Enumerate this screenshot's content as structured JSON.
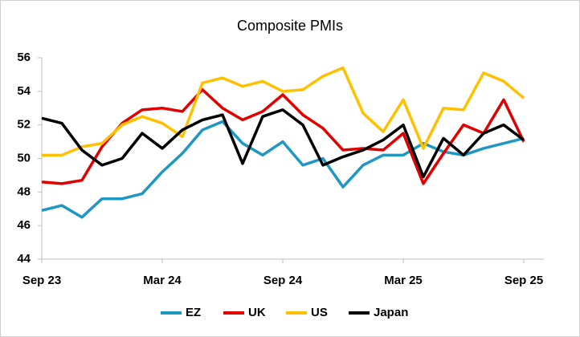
{
  "chart_data": {
    "type": "line",
    "title": "Composite PMIs",
    "categories": [
      "Sep 23",
      null,
      null,
      null,
      null,
      null,
      "Mar 24",
      null,
      null,
      null,
      null,
      null,
      "Sep 24",
      null,
      null,
      null,
      null,
      null,
      "Mar 25",
      null,
      null,
      null,
      null,
      null,
      "Sep 25"
    ],
    "series": [
      {
        "name": "EZ",
        "color": "#1f97c4",
        "values": [
          46.9,
          47.2,
          46.5,
          47.6,
          47.6,
          47.9,
          49.2,
          50.3,
          51.7,
          52.2,
          50.9,
          50.2,
          51.0,
          49.6,
          50.0,
          48.3,
          49.6,
          50.2,
          50.2,
          50.9,
          50.4,
          50.2,
          50.6,
          50.9,
          51.2
        ]
      },
      {
        "name": "UK",
        "color": "#e00000",
        "values": [
          48.6,
          48.5,
          48.7,
          50.7,
          52.1,
          52.9,
          53.0,
          52.8,
          54.1,
          53.0,
          52.3,
          52.8,
          53.8,
          52.6,
          51.8,
          50.5,
          50.6,
          50.5,
          51.5,
          48.5,
          50.3,
          52.0,
          51.5,
          53.5,
          51.0
        ]
      },
      {
        "name": "US",
        "color": "#ffc000",
        "values": [
          50.2,
          50.2,
          50.7,
          50.9,
          52.0,
          52.5,
          52.1,
          51.3,
          54.5,
          54.8,
          54.3,
          54.6,
          54.0,
          54.1,
          54.9,
          55.4,
          52.7,
          51.6,
          53.5,
          50.6,
          53.0,
          52.9,
          55.1,
          54.6,
          53.6
        ]
      },
      {
        "name": "Japan",
        "color": "#000000",
        "values": [
          52.4,
          52.1,
          50.5,
          49.6,
          50.0,
          51.5,
          50.6,
          51.7,
          52.3,
          52.6,
          49.7,
          52.5,
          52.9,
          52.0,
          49.6,
          50.1,
          50.5,
          51.1,
          52.0,
          48.9,
          51.2,
          50.2,
          51.5,
          52.0,
          51.1
        ]
      }
    ],
    "ylim": [
      44,
      56
    ],
    "yticks": [
      44,
      46,
      48,
      50,
      52,
      54,
      56
    ],
    "grid": false,
    "legend": "bottom"
  }
}
